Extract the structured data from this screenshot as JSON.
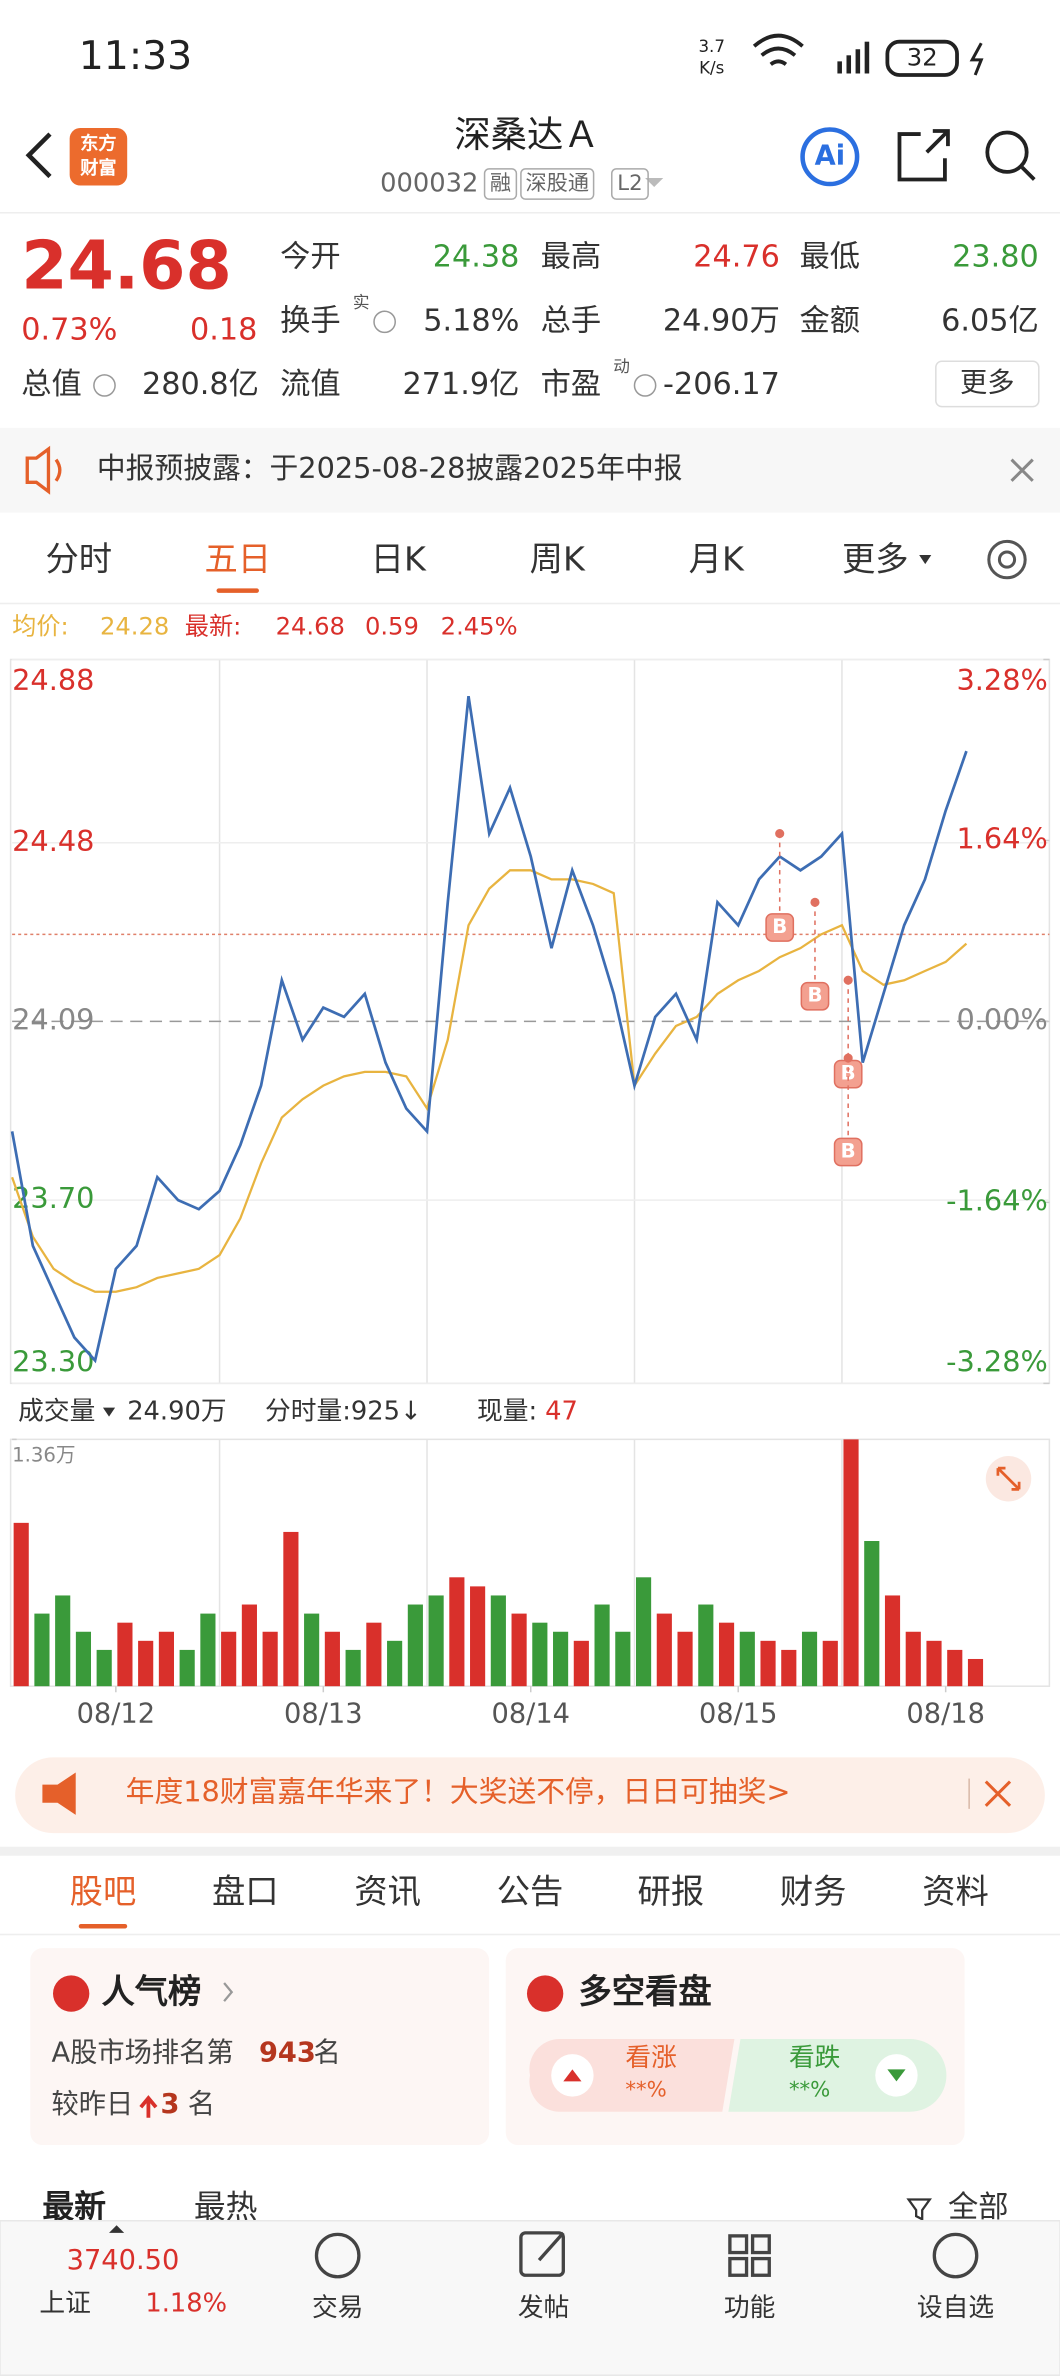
{
  "status_bar": {
    "time": "11:33",
    "speed_value": "3.7",
    "speed_unit": "K/s",
    "battery": "32"
  },
  "header": {
    "logo_lines": [
      "东方",
      "财富"
    ],
    "title": "深桑达Ａ",
    "code": "000032",
    "tags": [
      "融",
      "深股通",
      "L2"
    ],
    "ai": "Ai"
  },
  "quote": {
    "price": "24.68",
    "change_pct": "0.73%",
    "change": "0.18",
    "fields": [
      {
        "label": "今开",
        "value": "24.38",
        "color": "#3a9a3a"
      },
      {
        "label": "最高",
        "value": "24.76",
        "color": "#d9302b"
      },
      {
        "label": "最低",
        "value": "23.80",
        "color": "#3a9a3a"
      },
      {
        "label": "换手",
        "sup": "实",
        "value": "5.18%",
        "color": "#333333"
      },
      {
        "label": "总手",
        "value": "24.90万",
        "color": "#333333"
      },
      {
        "label": "金额",
        "value": "6.05亿",
        "color": "#333333"
      },
      {
        "label": "总值",
        "value": "280.8亿",
        "color": "#333333"
      },
      {
        "label": "流值",
        "value": "271.9亿",
        "color": "#333333"
      },
      {
        "label": "市盈",
        "sup": "动",
        "value": "-206.17",
        "color": "#333333"
      }
    ],
    "more": "更多"
  },
  "notice": "中报预披露：于2025-08-28披露2025年中报",
  "period_tabs": {
    "items": [
      "分时",
      "五日",
      "日K",
      "周K",
      "月K",
      "更多"
    ],
    "active": 1
  },
  "chart_data": [
    {
      "type": "line",
      "avg_price": 24.28,
      "latest_price": 24.68,
      "latest_change": 0.59,
      "latest_change_pct": "2.45%",
      "xlim": [
        0,
        5
      ],
      "xticks": [
        {
          "value": 0.5,
          "label": "08/12"
        },
        {
          "value": 1.5,
          "label": "08/13"
        },
        {
          "value": 2.5,
          "label": "08/14"
        },
        {
          "value": 3.5,
          "label": "08/15"
        },
        {
          "value": 4.5,
          "label": "08/18"
        }
      ],
      "x": [
        0,
        0.1,
        0.2,
        0.3,
        0.4,
        0.5,
        0.6,
        0.7,
        0.8,
        0.9,
        1,
        1.1,
        1.2,
        1.3,
        1.4,
        1.5,
        1.6,
        1.7,
        1.8,
        1.9,
        2,
        2.1,
        2.2,
        2.3,
        2.4,
        2.5,
        2.6,
        2.7,
        2.8,
        2.9,
        3,
        3.1,
        3.2,
        3.3,
        3.4,
        3.5,
        3.6,
        3.7,
        3.8,
        3.9,
        4,
        4.1,
        4.2,
        4.3,
        4.4,
        4.5,
        4.6
      ],
      "ylim": [
        23.3,
        24.88
      ],
      "yticks": [
        24.88,
        24.48,
        24.09,
        {
          "value": 23.7,
          "label": "23.70"
        },
        {
          "value": 23.3,
          "label": "23.30"
        }
      ],
      "y2lim": [
        -3.28,
        3.28
      ],
      "y2ticks": [
        {
          "value": 3.28,
          "label": "3.28%"
        },
        {
          "value": 1.64,
          "label": "1.64%"
        },
        {
          "value": 0,
          "label": "0.00%"
        },
        {
          "value": -1.64,
          "label": "-1.64%"
        },
        {
          "value": -3.28,
          "label": "-3.28%"
        }
      ],
      "series": [
        {
          "name": "最新:",
          "color": "#3d6db3",
          "values": [
            23.85,
            23.6,
            23.5,
            23.4,
            23.35,
            23.55,
            23.6,
            23.75,
            23.7,
            23.68,
            23.72,
            23.82,
            23.95,
            24.18,
            24.05,
            24.12,
            24.1,
            24.15,
            24.0,
            23.9,
            23.85,
            24.35,
            24.8,
            24.5,
            24.6,
            24.45,
            24.25,
            24.42,
            24.3,
            24.15,
            23.95,
            24.1,
            24.15,
            24.05,
            24.35,
            24.3,
            24.4,
            24.45,
            24.42,
            24.45,
            24.5,
            24.0,
            24.15,
            24.3,
            24.4,
            24.55,
            24.68
          ]
        },
        {
          "name": "均价:",
          "color": "#e8b440",
          "values": [
            23.75,
            23.62,
            23.55,
            23.52,
            23.5,
            23.5,
            23.51,
            23.53,
            23.54,
            23.55,
            23.58,
            23.66,
            23.78,
            23.88,
            23.92,
            23.95,
            23.97,
            23.98,
            23.98,
            23.97,
            23.9,
            24.05,
            24.3,
            24.38,
            24.42,
            24.42,
            24.4,
            24.4,
            24.39,
            24.37,
            23.95,
            24.02,
            24.08,
            24.1,
            24.15,
            24.18,
            24.2,
            24.23,
            24.25,
            24.28,
            24.3,
            24.2,
            24.17,
            24.18,
            24.2,
            24.22,
            24.26
          ]
        }
      ],
      "trade_marks": [
        {
          "label": "B",
          "x": 3.7,
          "value": 24.5
        },
        {
          "label": "B",
          "x": 3.87,
          "value": 24.35
        },
        {
          "label": "B",
          "x": 4.03,
          "value": 24.18
        },
        {
          "label": "B",
          "x": 4.03,
          "value": 24.01
        }
      ]
    },
    {
      "type": "bar",
      "label": "成交量",
      "total": "24.90万",
      "period_volume": "分时量:925↓",
      "current_label": "现量:",
      "current": 47,
      "ylim": [
        0,
        1.36
      ],
      "yticks": [
        {
          "value": 1.36,
          "label": "1.36万"
        }
      ],
      "up_color": "#d9302b",
      "down_color": "#3a9a3a",
      "values": [
        0.9,
        0.4,
        0.5,
        0.3,
        0.2,
        0.35,
        0.25,
        0.3,
        0.2,
        0.4,
        0.3,
        0.45,
        0.3,
        0.85,
        0.4,
        0.3,
        0.2,
        0.35,
        0.25,
        0.45,
        0.5,
        0.6,
        0.55,
        0.5,
        0.4,
        0.35,
        0.3,
        0.25,
        0.45,
        0.3,
        0.6,
        0.4,
        0.3,
        0.45,
        0.35,
        0.3,
        0.25,
        0.2,
        0.3,
        0.25,
        1.36,
        0.8,
        0.5,
        0.3,
        0.25,
        0.2,
        0.15
      ]
    }
  ],
  "banner": "年度18财富嘉年华来了！大奖送不停，日日可抽奖>",
  "section_tabs": {
    "items": [
      "股吧",
      "盘口",
      "资讯",
      "公告",
      "研报",
      "财务",
      "资料"
    ],
    "active": 0
  },
  "popularity": {
    "title": "人气榜",
    "rank_prefix": "A股市场排名第",
    "rank": "943",
    "rank_suffix": "名",
    "change_prefix": "较昨日",
    "change": "3",
    "change_suffix": "名"
  },
  "sentiment": {
    "title": "多空看盘",
    "bull": "看涨",
    "bull_pct": "**%",
    "bear": "看跌",
    "bear_pct": "**%"
  },
  "sort": {
    "latest": "最新",
    "hot": "最热",
    "all": "全部"
  },
  "bottom_nav": {
    "index_value": "3740.50",
    "index_name": "上证",
    "index_change": "1.18%",
    "items": [
      "交易",
      "发帖",
      "功能",
      "设自选"
    ]
  }
}
